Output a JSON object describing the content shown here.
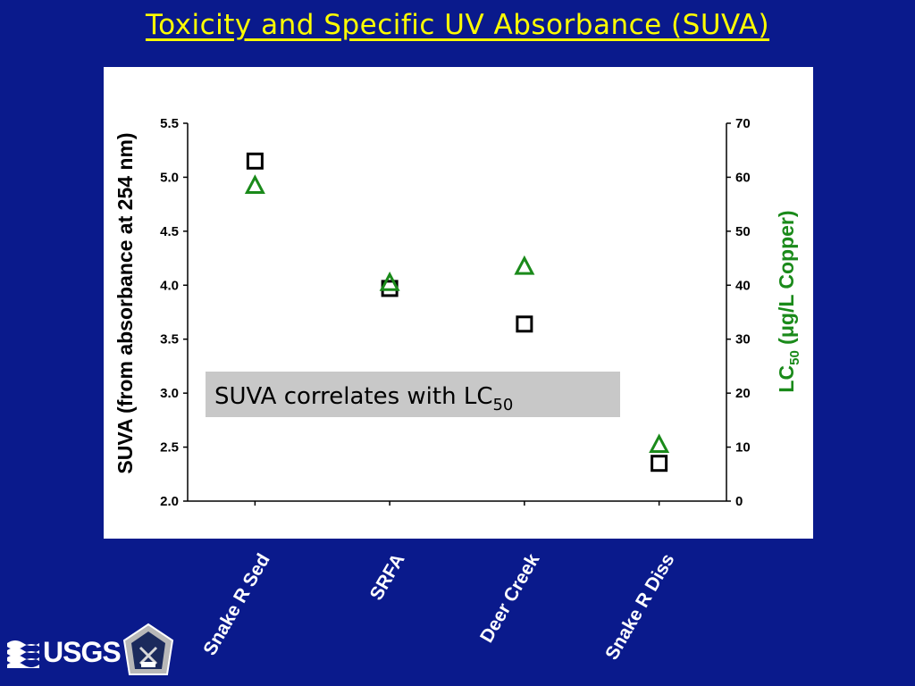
{
  "title": "Toxicity and Specific UV Absorbance (SUVA)",
  "logos": {
    "usgs": "USGS",
    "seal_text": "SCHOOL OF MINES COLORADO 1874"
  },
  "colors": {
    "background": "#0a1a8c",
    "title": "#ffff00",
    "suva_marker": "#000000",
    "lc50_marker": "#1a8a1a",
    "annotation_bg": "#c8c8c8"
  },
  "chart_data": {
    "type": "scatter",
    "categories": [
      "Snake R Sed",
      "SRFA",
      "Deer Creek",
      "Snake R Diss"
    ],
    "series": [
      {
        "axis": "left",
        "marker": "square",
        "values": [
          5.15,
          3.97,
          3.64,
          2.35
        ]
      },
      {
        "axis": "right",
        "marker": "triangle",
        "values": [
          58.5,
          40.5,
          43.5,
          10.5
        ]
      }
    ],
    "ylabel": "SUVA (from absorbance at 254 nm)",
    "ylim": [
      2.0,
      5.5
    ],
    "yticks": [
      "2.0",
      "2.5",
      "3.0",
      "3.5",
      "4.0",
      "4.5",
      "5.0",
      "5.5"
    ],
    "y2label_main": "LC",
    "y2label_sub": "50",
    "y2label_rest": " (μg/L Copper)",
    "y2lim": [
      0,
      70
    ],
    "y2ticks": [
      "0",
      "10",
      "20",
      "30",
      "40",
      "50",
      "60",
      "70"
    ],
    "annotation": {
      "text": "SUVA correlates with LC",
      "sub": "50"
    },
    "grid": false,
    "legend": "none"
  }
}
